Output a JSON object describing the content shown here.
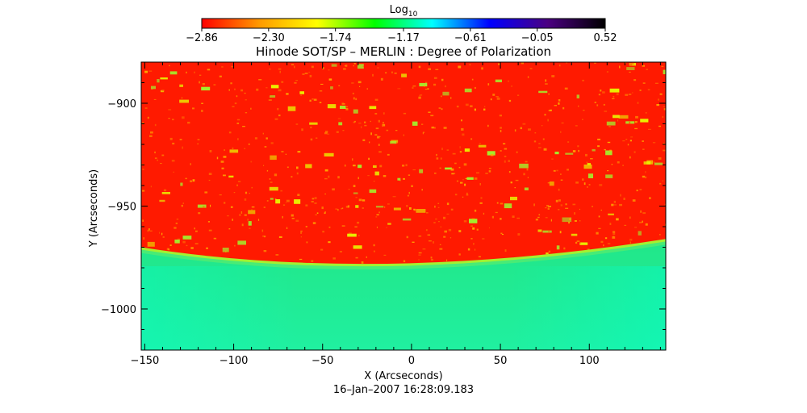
{
  "figure": {
    "title": "Hinode SOT/SP – MERLIN : Degree of Polarization",
    "timestamp": "16–Jan–2007 16:28:09.183",
    "xlabel": "X (Arcseconds)",
    "ylabel": "Y (Arcseconds)"
  },
  "colorbar": {
    "label_base": "Log",
    "label_sub": "10",
    "scale": "log10",
    "colormap": [
      "#ff0000",
      "#ff9a00",
      "#ffff00",
      "#00ff00",
      "#00ffff",
      "#0000ff",
      "#4b0082",
      "#000000"
    ],
    "ticks": [
      {
        "value": -2.86,
        "label": "−2.86"
      },
      {
        "value": -2.3,
        "label": "−2.30"
      },
      {
        "value": -1.74,
        "label": "−1.74"
      },
      {
        "value": -1.17,
        "label": "−1.17"
      },
      {
        "value": -0.61,
        "label": "−0.61"
      },
      {
        "value": -0.05,
        "label": "−0.05"
      },
      {
        "value": 0.52,
        "label": "0.52"
      }
    ]
  },
  "axes": {
    "xlim": [
      -152,
      143
    ],
    "ylim": [
      -1020,
      -880
    ],
    "xticks": [
      {
        "value": -150,
        "label": "−150"
      },
      {
        "value": -100,
        "label": "−100"
      },
      {
        "value": -50,
        "label": "−50"
      },
      {
        "value": 0,
        "label": "0"
      },
      {
        "value": 50,
        "label": "50"
      },
      {
        "value": 100,
        "label": "100"
      }
    ],
    "yticks": [
      {
        "value": -900,
        "label": "−900"
      },
      {
        "value": -950,
        "label": "−950"
      },
      {
        "value": -1000,
        "label": "−1000"
      }
    ]
  },
  "image": {
    "limb_y_center": -978,
    "limb_y_left": -970,
    "limb_y_right": -966,
    "disk_color": "#ff1a00",
    "offlimb_color": "#28e87a",
    "limb_edge_color": "#e8f000"
  }
}
